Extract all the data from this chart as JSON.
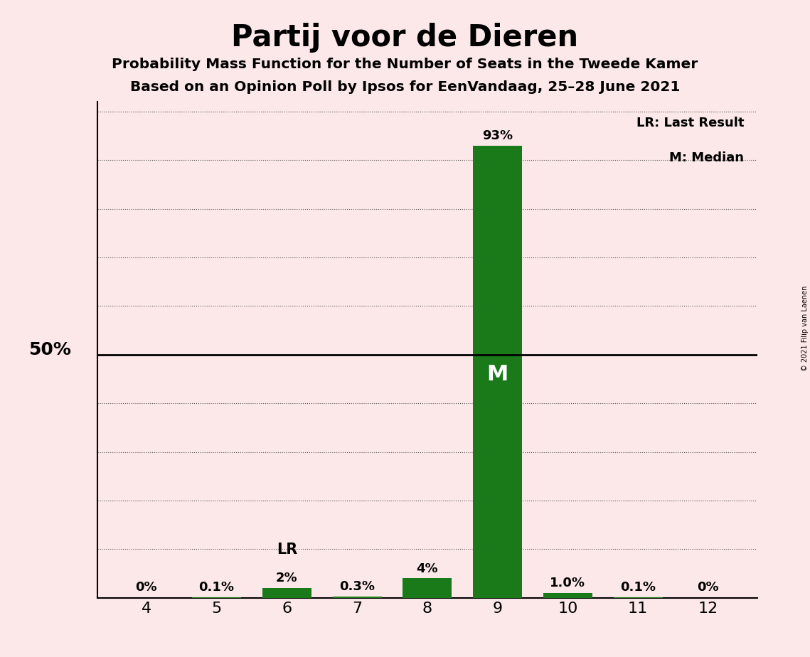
{
  "title": "Partij voor de Dieren",
  "subtitle1": "Probability Mass Function for the Number of Seats in the Tweede Kamer",
  "subtitle2": "Based on an Opinion Poll by Ipsos for EenVandaag, 25–28 June 2021",
  "copyright": "© 2021 Filip van Laenen",
  "seats": [
    4,
    5,
    6,
    7,
    8,
    9,
    10,
    11,
    12
  ],
  "probabilities": [
    0.0,
    0.001,
    0.02,
    0.003,
    0.04,
    0.93,
    0.01,
    0.001,
    0.0
  ],
  "prob_labels": [
    "0%",
    "0.1%",
    "2%",
    "0.3%",
    "4%",
    "93%",
    "1.0%",
    "0.1%",
    "0%"
  ],
  "bar_color": "#1a7a1a",
  "last_result_seat": 6,
  "median_seat": 9,
  "background_color": "#fce8e8",
  "fifty_pct_line_color": "#000000",
  "grid_color": "#555555",
  "ylabel_50pct": "50%",
  "legend_lr": "LR: Last Result",
  "legend_m": "M: Median",
  "lr_label": "LR",
  "m_label": "M",
  "yticks": [
    0.0,
    0.1,
    0.2,
    0.3,
    0.4,
    0.5,
    0.6,
    0.7,
    0.8,
    0.9,
    1.0
  ]
}
